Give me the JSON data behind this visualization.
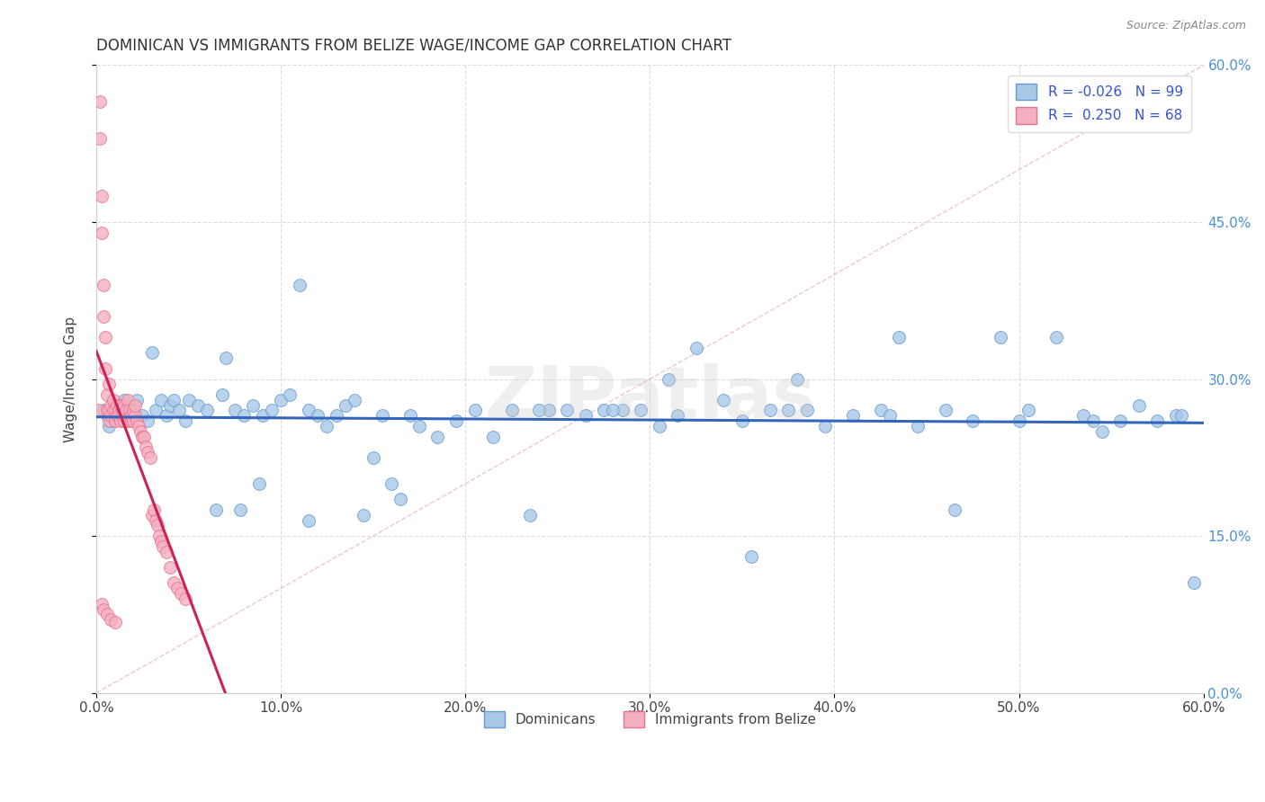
{
  "title": "DOMINICAN VS IMMIGRANTS FROM BELIZE WAGE/INCOME GAP CORRELATION CHART",
  "source": "Source: ZipAtlas.com",
  "ylabel": "Wage/Income Gap",
  "xlim": [
    0.0,
    0.6
  ],
  "ylim": [
    0.0,
    0.6
  ],
  "xtick_labels": [
    "0.0%",
    "10.0%",
    "20.0%",
    "30.0%",
    "40.0%",
    "50.0%",
    "60.0%"
  ],
  "xtick_vals": [
    0.0,
    0.1,
    0.2,
    0.3,
    0.4,
    0.5,
    0.6
  ],
  "ytick_labels": [
    "0.0%",
    "15.0%",
    "30.0%",
    "45.0%",
    "60.0%"
  ],
  "ytick_vals": [
    0.0,
    0.15,
    0.3,
    0.45,
    0.6
  ],
  "blue_R": -0.026,
  "blue_N": 99,
  "pink_R": 0.25,
  "pink_N": 68,
  "legend_label_blue": "Dominicans",
  "legend_label_pink": "Immigrants from Belize",
  "blue_color": "#a8c8e8",
  "pink_color": "#f4b0c0",
  "blue_edge": "#6699cc",
  "pink_edge": "#e87090",
  "trend_blue": "#3366bb",
  "trend_pink": "#cc2255",
  "diag_color": "#e8a0b0",
  "watermark": "ZIPatlas",
  "background": "#ffffff",
  "blue_x": [
    0.004,
    0.006,
    0.007,
    0.008,
    0.01,
    0.012,
    0.014,
    0.015,
    0.016,
    0.018,
    0.02,
    0.022,
    0.025,
    0.028,
    0.03,
    0.032,
    0.035,
    0.038,
    0.04,
    0.042,
    0.045,
    0.048,
    0.05,
    0.055,
    0.06,
    0.065,
    0.068,
    0.07,
    0.075,
    0.078,
    0.08,
    0.085,
    0.088,
    0.09,
    0.095,
    0.1,
    0.105,
    0.11,
    0.115,
    0.12,
    0.125,
    0.13,
    0.135,
    0.14,
    0.145,
    0.15,
    0.155,
    0.16,
    0.165,
    0.17,
    0.175,
    0.185,
    0.195,
    0.205,
    0.215,
    0.225,
    0.235,
    0.245,
    0.255,
    0.265,
    0.275,
    0.285,
    0.295,
    0.305,
    0.315,
    0.325,
    0.34,
    0.355,
    0.365,
    0.375,
    0.385,
    0.395,
    0.41,
    0.425,
    0.435,
    0.445,
    0.46,
    0.475,
    0.49,
    0.505,
    0.52,
    0.535,
    0.545,
    0.555,
    0.565,
    0.575,
    0.585,
    0.595,
    0.115,
    0.24,
    0.28,
    0.31,
    0.35,
    0.38,
    0.43,
    0.465,
    0.5,
    0.54,
    0.588
  ],
  "blue_y": [
    0.27,
    0.265,
    0.255,
    0.26,
    0.275,
    0.27,
    0.265,
    0.28,
    0.26,
    0.27,
    0.27,
    0.28,
    0.265,
    0.26,
    0.325,
    0.27,
    0.28,
    0.265,
    0.275,
    0.28,
    0.27,
    0.26,
    0.28,
    0.275,
    0.27,
    0.175,
    0.285,
    0.32,
    0.27,
    0.175,
    0.265,
    0.275,
    0.2,
    0.265,
    0.27,
    0.28,
    0.285,
    0.39,
    0.27,
    0.265,
    0.255,
    0.265,
    0.275,
    0.28,
    0.17,
    0.225,
    0.265,
    0.2,
    0.185,
    0.265,
    0.255,
    0.245,
    0.26,
    0.27,
    0.245,
    0.27,
    0.17,
    0.27,
    0.27,
    0.265,
    0.27,
    0.27,
    0.27,
    0.255,
    0.265,
    0.33,
    0.28,
    0.13,
    0.27,
    0.27,
    0.27,
    0.255,
    0.265,
    0.27,
    0.34,
    0.255,
    0.27,
    0.26,
    0.34,
    0.27,
    0.34,
    0.265,
    0.25,
    0.26,
    0.275,
    0.26,
    0.265,
    0.105,
    0.165,
    0.27,
    0.27,
    0.3,
    0.26,
    0.3,
    0.265,
    0.175,
    0.26,
    0.26,
    0.265
  ],
  "pink_x": [
    0.001,
    0.002,
    0.002,
    0.003,
    0.003,
    0.004,
    0.004,
    0.005,
    0.005,
    0.006,
    0.006,
    0.007,
    0.007,
    0.007,
    0.008,
    0.008,
    0.009,
    0.009,
    0.01,
    0.01,
    0.011,
    0.011,
    0.012,
    0.012,
    0.013,
    0.013,
    0.014,
    0.014,
    0.015,
    0.015,
    0.016,
    0.016,
    0.017,
    0.017,
    0.018,
    0.018,
    0.019,
    0.019,
    0.02,
    0.02,
    0.021,
    0.021,
    0.022,
    0.023,
    0.024,
    0.025,
    0.026,
    0.027,
    0.028,
    0.029,
    0.03,
    0.031,
    0.032,
    0.033,
    0.034,
    0.035,
    0.036,
    0.038,
    0.04,
    0.042,
    0.044,
    0.046,
    0.048,
    0.003,
    0.004,
    0.006,
    0.008,
    0.01
  ],
  "pink_y": [
    0.27,
    0.565,
    0.53,
    0.475,
    0.44,
    0.39,
    0.36,
    0.34,
    0.31,
    0.285,
    0.27,
    0.26,
    0.27,
    0.295,
    0.275,
    0.265,
    0.27,
    0.28,
    0.26,
    0.27,
    0.265,
    0.275,
    0.27,
    0.265,
    0.275,
    0.26,
    0.27,
    0.265,
    0.26,
    0.275,
    0.265,
    0.27,
    0.26,
    0.28,
    0.265,
    0.27,
    0.26,
    0.265,
    0.26,
    0.27,
    0.265,
    0.275,
    0.26,
    0.255,
    0.25,
    0.245,
    0.245,
    0.235,
    0.23,
    0.225,
    0.17,
    0.175,
    0.165,
    0.16,
    0.15,
    0.145,
    0.14,
    0.135,
    0.12,
    0.105,
    0.1,
    0.095,
    0.09,
    0.085,
    0.08,
    0.075,
    0.07,
    0.068
  ]
}
